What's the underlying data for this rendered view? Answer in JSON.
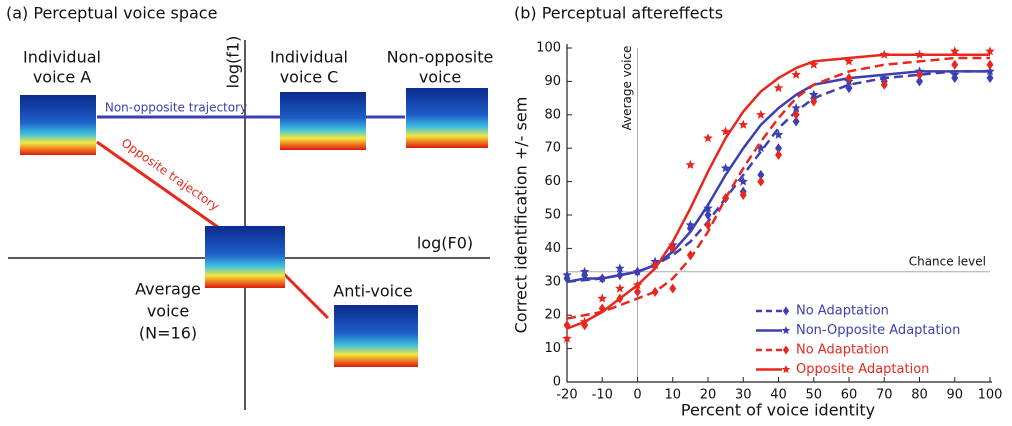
{
  "panel_a": {
    "title": "(a) Perceptual voice space",
    "y_axis_label": "log(f1)",
    "x_axis_label": "log(F0)",
    "voice_a": [
      "Individual",
      "voice A"
    ],
    "voice_c": [
      "Individual",
      "voice C"
    ],
    "non_opposite_voice": [
      "Non-opposite",
      "voice"
    ],
    "average_voice": [
      "Average",
      "voice",
      "(N=16)"
    ],
    "anti_voice": "Anti-voice",
    "non_opposite_trajectory": "Non-opposite trajectory",
    "opposite_trajectory": "Opposite trajectory"
  },
  "chart_data": {
    "type": "line",
    "title": "(b)  Perceptual aftereffects",
    "y_label": "Correct identification +/- sem",
    "x_label": "Percent of voice identity",
    "x": [
      -20,
      -15,
      -10,
      -5,
      0,
      5,
      10,
      15,
      20,
      25,
      30,
      35,
      40,
      45,
      50,
      60,
      70,
      80,
      90,
      100
    ],
    "series": [
      {
        "name": "No Adaptation",
        "color": "#3b3fb3",
        "dash": true,
        "marker": "diamond",
        "values": [
          31,
          32,
          31,
          32,
          33,
          35,
          40,
          46,
          50,
          55,
          57,
          62,
          70,
          78,
          85,
          88,
          90,
          90,
          91,
          91
        ],
        "fit": [
          30,
          30.5,
          31,
          32,
          33,
          35,
          38,
          42,
          48,
          55,
          62,
          69,
          76,
          81,
          85,
          89,
          91,
          92,
          93,
          93
        ]
      },
      {
        "name": "Non-Opposite Adaptation",
        "color": "#3b3fb3",
        "dash": false,
        "marker": "star",
        "values": [
          32,
          33,
          31,
          34,
          33,
          36,
          41,
          47,
          52,
          64,
          60,
          70,
          74,
          82,
          86,
          90,
          91,
          93,
          92,
          93
        ],
        "fit": [
          30,
          31,
          31,
          32,
          33,
          35,
          39,
          45,
          53,
          62,
          70,
          77,
          82,
          86,
          89,
          91,
          92,
          93,
          93,
          93
        ]
      },
      {
        "name": "No Adaptation",
        "color": "#e8281e",
        "dash": true,
        "marker": "diamond",
        "values": [
          17,
          17,
          22,
          25,
          27,
          27,
          28,
          38,
          47,
          55,
          56,
          60,
          68,
          80,
          84,
          91,
          89,
          92,
          95,
          95
        ],
        "fit": [
          19,
          20,
          21,
          23,
          25,
          27,
          31,
          37,
          45,
          55,
          64,
          72,
          79,
          85,
          89,
          93,
          95,
          96,
          97,
          97
        ]
      },
      {
        "name": "Opposite Adaptation",
        "color": "#e8281e",
        "dash": false,
        "marker": "star",
        "values": [
          13,
          18,
          25,
          28,
          29,
          35,
          40,
          65,
          73,
          75,
          77,
          80,
          88,
          92,
          95,
          96,
          98,
          98,
          99,
          99
        ],
        "fit": [
          16,
          18,
          21,
          25,
          29,
          34,
          42,
          52,
          63,
          73,
          81,
          87,
          91,
          94,
          96,
          97,
          98,
          98,
          98,
          98
        ]
      }
    ],
    "xlim": [
      -20,
      100
    ],
    "xticks": [
      -20,
      -10,
      0,
      10,
      20,
      30,
      40,
      50,
      60,
      70,
      80,
      90,
      100
    ],
    "ylim": [
      0,
      100
    ],
    "yticks": [
      0,
      10,
      20,
      30,
      40,
      50,
      60,
      70,
      80,
      90,
      100
    ],
    "reference_x": {
      "value": 0,
      "label": "Average voice"
    },
    "reference_y": {
      "value": 33,
      "label": "Chance level"
    },
    "legend": "lower right"
  }
}
